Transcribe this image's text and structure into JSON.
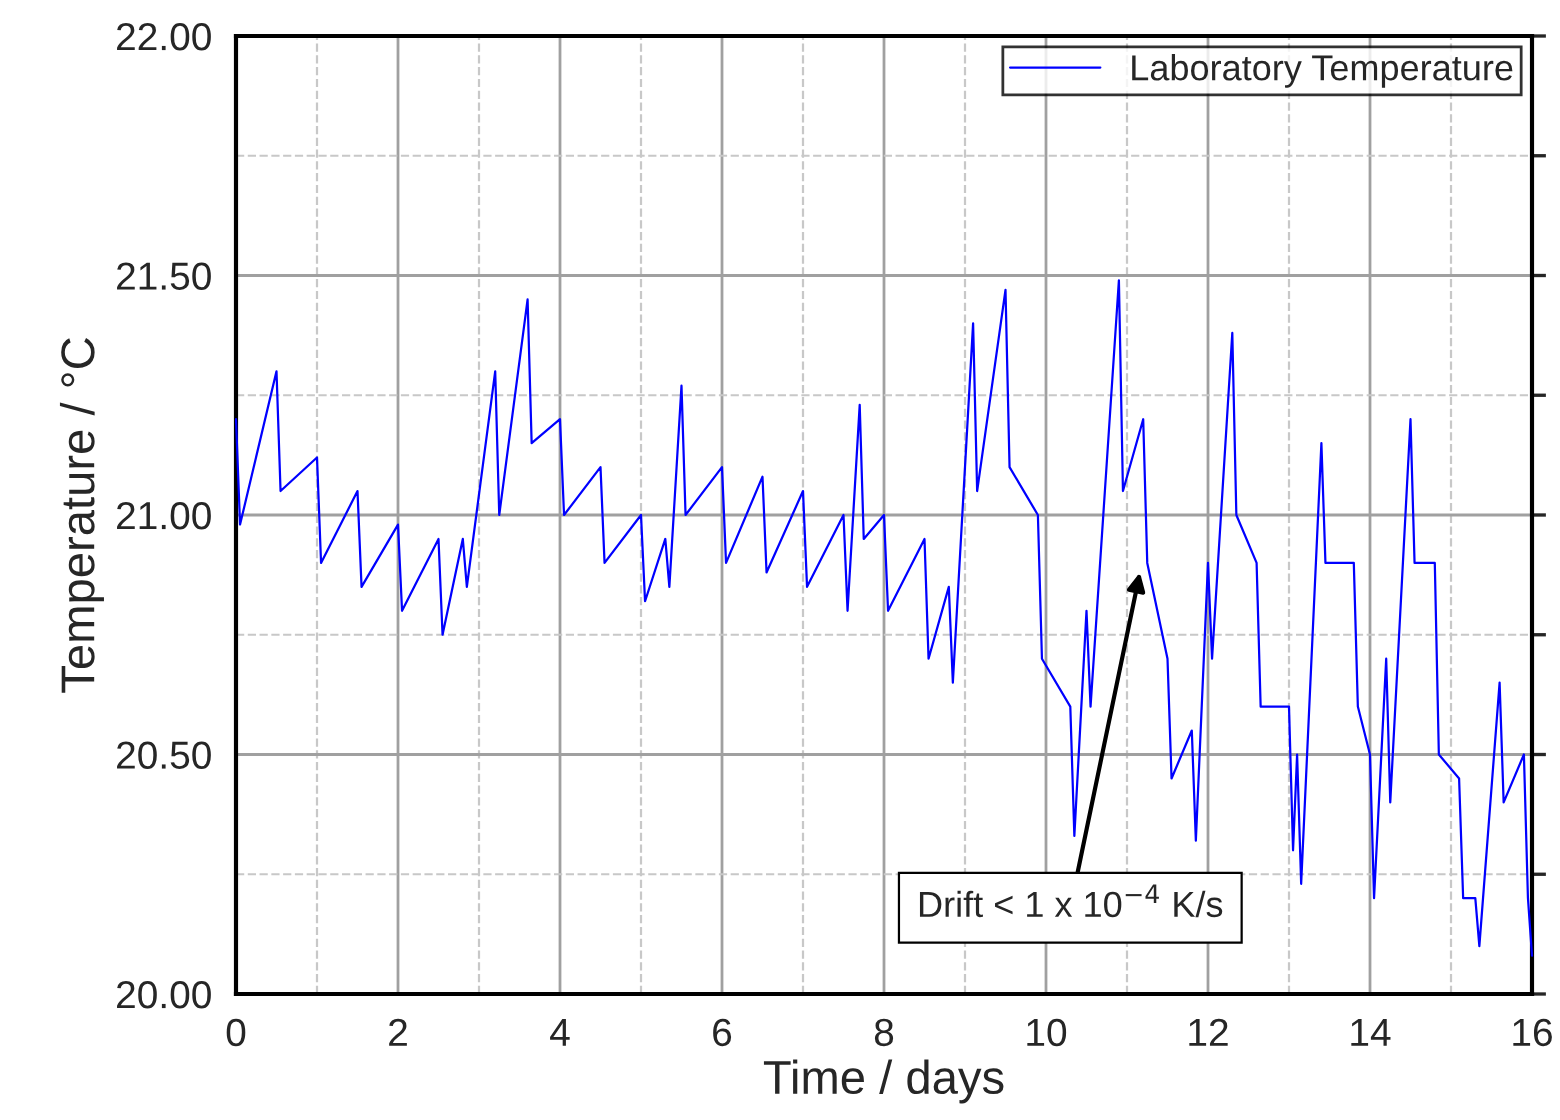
{
  "chart_data": {
    "type": "line",
    "xlabel": "Time / days",
    "ylabel": "Temperature / °C",
    "xlim": [
      0,
      16
    ],
    "ylim": [
      20,
      22
    ],
    "xticks": [
      0,
      {
        "value": 1,
        "label": null
      },
      2,
      {
        "value": 3,
        "label": null
      },
      4,
      {
        "value": 5,
        "label": null
      },
      6,
      {
        "value": 7,
        "label": null
      },
      8,
      {
        "value": 9,
        "label": null
      },
      10,
      {
        "value": 11,
        "label": null
      },
      12,
      {
        "value": 13,
        "label": null
      },
      14,
      {
        "value": 15,
        "label": null
      },
      16
    ],
    "yticks": [
      {
        "value": 20,
        "label": "20.00"
      },
      {
        "value": 20.25,
        "label": null
      },
      {
        "value": 20.5,
        "label": "20.50"
      },
      {
        "value": 20.75,
        "label": null
      },
      {
        "value": 21,
        "label": "21.00"
      },
      {
        "value": 21.25,
        "label": null
      },
      {
        "value": 21.5,
        "label": "21.50"
      },
      {
        "value": 21.75,
        "label": null
      },
      {
        "value": 22,
        "label": "22.00"
      }
    ],
    "grid": true,
    "legend": "top right",
    "line_style": "solid",
    "annotations": [
      {
        "text": "Drift < 1 x 10$^{−4}$ K/s",
        "x": 11.16,
        "y": 20.88
      }
    ],
    "series": [
      {
        "name": "Laboratory Temperature",
        "color": "#0000ff",
        "x": [
          0,
          0.05,
          0.5,
          0.55,
          1,
          1.05,
          1.5,
          1.55,
          2,
          2.05,
          2.5,
          2.55,
          2.8,
          2.85,
          3.2,
          3.25,
          3.6,
          3.65,
          4.0,
          4.05,
          4.5,
          4.55,
          5.0,
          5.05,
          5.3,
          5.35,
          5.5,
          5.55,
          6.0,
          6.05,
          6.5,
          6.55,
          7.0,
          7.05,
          7.5,
          7.55,
          7.7,
          7.75,
          8.0,
          8.05,
          8.5,
          8.55,
          8.8,
          8.85,
          9.1,
          9.15,
          9.5,
          9.55,
          9.9,
          9.95,
          10.3,
          10.35,
          10.5,
          10.55,
          10.9,
          10.95,
          11.2,
          11.25,
          11.5,
          11.55,
          11.8,
          11.85,
          12.0,
          12.05,
          12.3,
          12.35,
          12.6,
          12.65,
          13.0,
          13.05,
          13.1,
          13.15,
          13.4,
          13.45,
          13.8,
          13.85,
          14.0,
          14.05,
          14.2,
          14.25,
          14.5,
          14.55,
          14.8,
          14.85,
          15.1,
          15.15,
          15.3,
          15.35,
          15.6,
          15.65,
          15.9,
          15.95,
          16.0
        ],
        "values": [
          21.2,
          20.98,
          21.3,
          21.05,
          21.12,
          20.9,
          21.05,
          20.85,
          20.98,
          20.8,
          20.95,
          20.75,
          20.95,
          20.85,
          21.3,
          21.0,
          21.45,
          21.15,
          21.2,
          21.0,
          21.1,
          20.9,
          21.0,
          20.82,
          20.95,
          20.85,
          21.27,
          21.0,
          21.1,
          20.9,
          21.08,
          20.88,
          21.05,
          20.85,
          21.0,
          20.8,
          21.23,
          20.95,
          21.0,
          20.8,
          20.95,
          20.7,
          20.85,
          20.65,
          21.4,
          21.05,
          21.47,
          21.1,
          21.0,
          20.7,
          20.6,
          20.33,
          20.8,
          20.6,
          21.49,
          21.05,
          21.2,
          20.9,
          20.7,
          20.45,
          20.55,
          20.32,
          20.9,
          20.7,
          21.38,
          21.0,
          20.9,
          20.6,
          20.6,
          20.3,
          20.5,
          20.23,
          21.15,
          20.9,
          20.9,
          20.6,
          20.5,
          20.2,
          20.7,
          20.4,
          21.2,
          20.9,
          20.9,
          20.5,
          20.45,
          20.2,
          20.2,
          20.1,
          20.65,
          20.4,
          20.5,
          20.2,
          20.08
        ]
      }
    ]
  }
}
